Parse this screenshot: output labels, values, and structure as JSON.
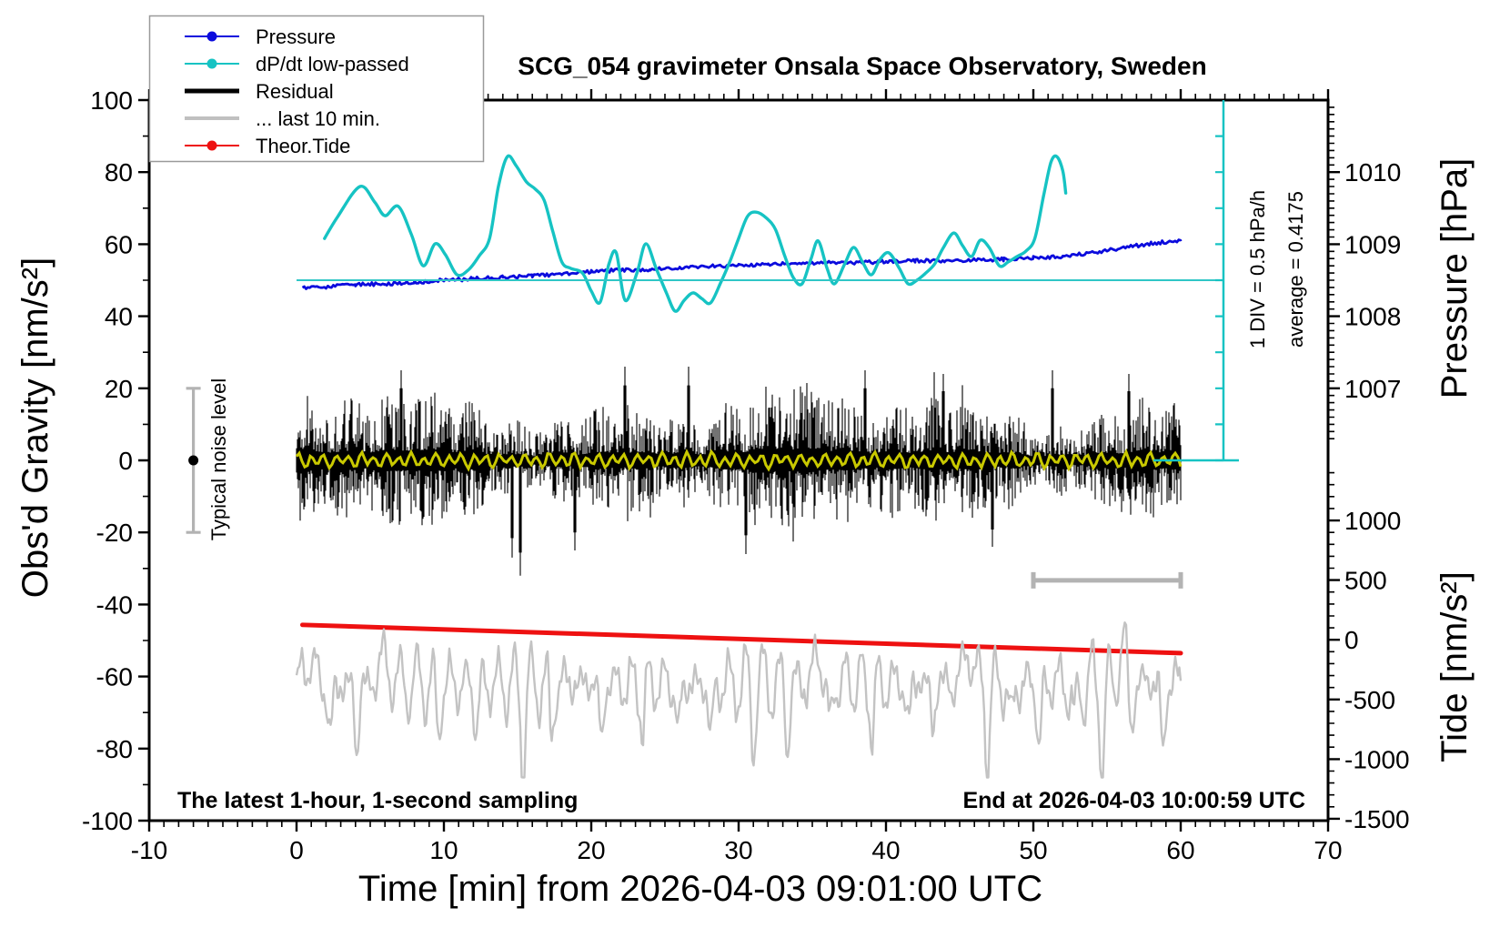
{
  "title": "SCG_054 gravimeter Onsala Space Observatory, Sweden",
  "axes": {
    "x": {
      "label": "Time [min] from 2026-04-03 09:01:00 UTC",
      "min": -10,
      "max": 70,
      "major_step": 10,
      "minor_step": 1,
      "major_ticks": [
        -10,
        0,
        10,
        20,
        30,
        40,
        50,
        60,
        70
      ],
      "tick_labels": [
        "-10",
        "0",
        "10",
        "20",
        "30",
        "40",
        "50",
        "60",
        "70"
      ]
    },
    "y_left": {
      "label": "Obs'd Gravity [nm/s²]",
      "min": -100,
      "max": 100,
      "major_step": 20,
      "minor_step": 10,
      "major_ticks": [
        100,
        80,
        60,
        40,
        20,
        0,
        -20,
        -40,
        -60,
        -80,
        -100
      ],
      "tick_labels": [
        "100",
        "80",
        "60",
        "40",
        "20",
        "0",
        "-20",
        "-40",
        "-60",
        "-80",
        "-100"
      ]
    },
    "y_right_pressure": {
      "label": "Pressure [hPa]",
      "major_ticks": [
        1010,
        1009,
        1008,
        1007
      ],
      "tick_labels": [
        "1010",
        "1009",
        "1008",
        "1007"
      ],
      "minor_step_hpa": 0.1,
      "minor_range": [
        1006.3,
        1010.9
      ],
      "ref_pressure": 1008.5,
      "ref_gravity": 50,
      "gravity_per_hpa": 20
    },
    "y_right_tide": {
      "label": "Tide [nm/s²]",
      "major_ticks": [
        1000,
        500,
        0,
        -500,
        -1000,
        -1500
      ],
      "tick_labels": [
        "1000",
        "500",
        "0",
        "-500",
        "-1000",
        "-1500"
      ],
      "minor_step": 100,
      "minor_range": [
        -1400,
        1400
      ],
      "zero_gravity": -49.8,
      "gravity_per_tide_unit": 0.03312
    }
  },
  "legend": {
    "items": [
      {
        "label": "Pressure",
        "color": "#0b0bdd",
        "marker": "dot",
        "line_width": 2
      },
      {
        "label": "dP/dt low-passed",
        "color": "#16c3c3",
        "marker": "dot",
        "line_width": 2
      },
      {
        "label": "Residual",
        "color": "#000000",
        "marker": "none",
        "line_width": 5
      },
      {
        "label": "... last 10 min.",
        "color": "#c0c0c0",
        "marker": "none",
        "line_width": 4
      },
      {
        "label": "Theor.Tide",
        "color": "#ee1111",
        "marker": "dot",
        "line_width": 2
      }
    ]
  },
  "annotations": {
    "bottom_left": "The latest 1-hour, 1-second sampling",
    "bottom_right": "End at 2026-04-03 10:00:59 UTC",
    "div_scale": "1 DIV = 0.5 hPa/h",
    "average": "average = 0.4175",
    "noise_label": "Typical noise level",
    "noise_bar": {
      "x_min": -7.0,
      "gravity_from": -20,
      "gravity_to": 20,
      "dot_gravity": 0
    },
    "last10_bar": {
      "from_min": 50,
      "to_min": 60,
      "gravity": -33.3
    },
    "div_bar": {
      "x_min": 62.9,
      "gravity_from": 0,
      "gravity_to": 100,
      "tick_step_gravity": 10,
      "ref_gravity": 50,
      "ref_from_min": 0
    }
  },
  "colors": {
    "pressure": "#0b0bdd",
    "dpdt": "#16c3c3",
    "residual": "#000000",
    "last10": "#c3c3c3",
    "tide": "#ee1111",
    "lowpass": "#c9c900",
    "noise_bar": "#b3b3b3",
    "ref_line": "#2fc6c6",
    "frame": "#000000",
    "legend_border": "#9a9a9a"
  },
  "chart_data": {
    "type": "line",
    "title": "SCG_054 gravimeter Onsala Space Observatory, Sweden",
    "xlabel": "Time [min] from 2026-04-03 09:01:00 UTC",
    "x_range_min": [
      -10,
      70
    ],
    "left_axis": {
      "label": "Obs'd Gravity [nm/s²]",
      "range": [
        -100,
        100
      ]
    },
    "series": [
      {
        "name": "Pressure",
        "axis": "pressure_hPa",
        "average_dpdt_hpa_per_h": 0.4175,
        "points_min_hpa": [
          [
            0.4,
            1008.4
          ],
          [
            2,
            1008.41
          ],
          [
            4,
            1008.44
          ],
          [
            6,
            1008.45
          ],
          [
            8,
            1008.47
          ],
          [
            10,
            1008.5
          ],
          [
            12,
            1008.52
          ],
          [
            14,
            1008.54
          ],
          [
            16,
            1008.56
          ],
          [
            18,
            1008.58
          ],
          [
            20,
            1008.62
          ],
          [
            22,
            1008.64
          ],
          [
            24,
            1008.65
          ],
          [
            26,
            1008.67
          ],
          [
            28,
            1008.69
          ],
          [
            30,
            1008.71
          ],
          [
            32,
            1008.72
          ],
          [
            34,
            1008.73
          ],
          [
            36,
            1008.74
          ],
          [
            38,
            1008.74
          ],
          [
            40,
            1008.76
          ],
          [
            42,
            1008.77
          ],
          [
            44,
            1008.77
          ],
          [
            46,
            1008.78
          ],
          [
            48,
            1008.79
          ],
          [
            50,
            1008.81
          ],
          [
            52,
            1008.83
          ],
          [
            54,
            1008.88
          ],
          [
            55,
            1008.91
          ],
          [
            56,
            1008.95
          ],
          [
            57,
            1008.98
          ],
          [
            58,
            1009.01
          ],
          [
            59,
            1009.03
          ],
          [
            60,
            1009.04
          ]
        ],
        "jitter_gravity_units": 0.35
      },
      {
        "name": "dP/dt low-passed",
        "axis": "left_gravity_units",
        "scale_note": "1 DIV = 0.5 hPa/h",
        "points_min_val": [
          [
            1.9,
            61.6
          ],
          [
            2.8,
            67.7
          ],
          [
            4.3,
            76
          ],
          [
            5.3,
            71.7
          ],
          [
            6,
            67.9
          ],
          [
            6.9,
            70.5
          ],
          [
            7.8,
            62.6
          ],
          [
            8.6,
            54
          ],
          [
            9.4,
            60.1
          ],
          [
            10.1,
            57.1
          ],
          [
            10.9,
            51.5
          ],
          [
            11.7,
            53
          ],
          [
            12.4,
            56.8
          ],
          [
            13.1,
            61.6
          ],
          [
            13.7,
            76
          ],
          [
            14.3,
            84.3
          ],
          [
            14.9,
            81.8
          ],
          [
            15.6,
            77.3
          ],
          [
            16.2,
            75.3
          ],
          [
            16.8,
            72.2
          ],
          [
            17.4,
            63.4
          ],
          [
            18,
            55.1
          ],
          [
            18.6,
            53.3
          ],
          [
            19.4,
            52
          ],
          [
            20,
            47
          ],
          [
            20.6,
            43.9
          ],
          [
            21.2,
            54.5
          ],
          [
            21.7,
            57.6
          ],
          [
            22.3,
            44.4
          ],
          [
            23.1,
            52
          ],
          [
            23.7,
            60.1
          ],
          [
            24.4,
            53.3
          ],
          [
            25.1,
            46.5
          ],
          [
            25.7,
            41.4
          ],
          [
            26.3,
            44.4
          ],
          [
            26.9,
            46.5
          ],
          [
            27.5,
            44.9
          ],
          [
            28.1,
            43.7
          ],
          [
            28.8,
            49.5
          ],
          [
            29.4,
            55.1
          ],
          [
            30,
            61.6
          ],
          [
            30.6,
            67.7
          ],
          [
            31.2,
            68.9
          ],
          [
            31.9,
            67.2
          ],
          [
            32.5,
            64.1
          ],
          [
            33.1,
            57.1
          ],
          [
            33.7,
            50.8
          ],
          [
            34.3,
            49
          ],
          [
            34.9,
            55.8
          ],
          [
            35.4,
            60.9
          ],
          [
            36,
            53.3
          ],
          [
            36.5,
            49
          ],
          [
            37.2,
            54.5
          ],
          [
            37.8,
            59.1
          ],
          [
            38.4,
            55.1
          ],
          [
            39,
            51.5
          ],
          [
            39.6,
            55.8
          ],
          [
            40.2,
            57.6
          ],
          [
            40.9,
            53.3
          ],
          [
            41.5,
            49
          ],
          [
            42.1,
            50
          ],
          [
            42.7,
            52
          ],
          [
            43.3,
            54.5
          ],
          [
            43.9,
            59.1
          ],
          [
            44.6,
            63.1
          ],
          [
            45.2,
            59.6
          ],
          [
            45.8,
            56.6
          ],
          [
            46.4,
            61.1
          ],
          [
            47,
            59.1
          ],
          [
            47.7,
            54
          ],
          [
            48.3,
            55.1
          ],
          [
            48.9,
            56.6
          ],
          [
            49.5,
            58.1
          ],
          [
            50.1,
            61.6
          ],
          [
            50.7,
            73.5
          ],
          [
            51.2,
            82.8
          ],
          [
            51.6,
            84.3
          ],
          [
            52,
            80.3
          ],
          [
            52.2,
            74.2
          ]
        ]
      },
      {
        "name": "Residual",
        "axis": "left_gravity_units",
        "from_min": 0,
        "to_min": 60,
        "noise_spec": {
          "center": 0,
          "base": 2.2,
          "amp": 12.5,
          "seed": 1337,
          "typical_halfwidth": 15,
          "spikes": [
            {
              "min": 15.2,
              "down": 32
            },
            {
              "min": 14.6,
              "down": 27
            },
            {
              "min": 26.6,
              "up": 26
            },
            {
              "min": 7.1,
              "up": 25
            },
            {
              "min": 22.3,
              "up": 26
            },
            {
              "min": 30.5,
              "down": 26
            },
            {
              "min": 38.6,
              "up": 25
            },
            {
              "min": 43.9,
              "up": 24
            },
            {
              "min": 51.3,
              "up": 25
            },
            {
              "min": 56.5,
              "up": 24
            },
            {
              "min": 18.9,
              "down": 25
            },
            {
              "min": 47.2,
              "down": 24
            }
          ]
        }
      },
      {
        "name": "... last 10 min.",
        "axis": "left_gravity_units",
        "from_min": 0,
        "to_min": 60,
        "wave_spec": {
          "center": -62,
          "period_min": 1.12,
          "seed": 777,
          "dips": [
            [
              2.3,
              16
            ],
            [
              4.1,
              21
            ],
            [
              9.6,
              14
            ],
            [
              12.2,
              12
            ],
            [
              15.4,
              23
            ],
            [
              17.3,
              15
            ],
            [
              20.7,
              16
            ],
            [
              23.5,
              12
            ],
            [
              25.9,
              14
            ],
            [
              28.1,
              17
            ],
            [
              31.0,
              12
            ],
            [
              33.3,
              15
            ],
            [
              36.2,
              12
            ],
            [
              39.1,
              14
            ],
            [
              41.5,
              11
            ],
            [
              43.2,
              13
            ],
            [
              46.9,
              22
            ],
            [
              48.5,
              12
            ],
            [
              50.4,
              18
            ],
            [
              52.8,
              13
            ],
            [
              54.7,
              23
            ],
            [
              56.6,
              14
            ],
            [
              58.8,
              19
            ]
          ],
          "bumps": [
            [
              0.9,
              8
            ],
            [
              5.9,
              9
            ],
            [
              35.3,
              8
            ],
            [
              45.6,
              11
            ],
            [
              56.1,
              12
            ]
          ],
          "clamp": [
            -88,
            -45
          ]
        }
      },
      {
        "name": "Theor.Tide",
        "axis": "tide_nm_s2",
        "points_min_tide": [
          [
            0.4,
            125
          ],
          [
            60,
            -112
          ]
        ]
      },
      {
        "name": "Residual low-passed (yellow)",
        "axis": "left_gravity_units",
        "from_min": 0,
        "to_min": 60,
        "wave_spec": {
          "center": 0,
          "amp": 1.5,
          "seed": 99
        }
      }
    ]
  }
}
